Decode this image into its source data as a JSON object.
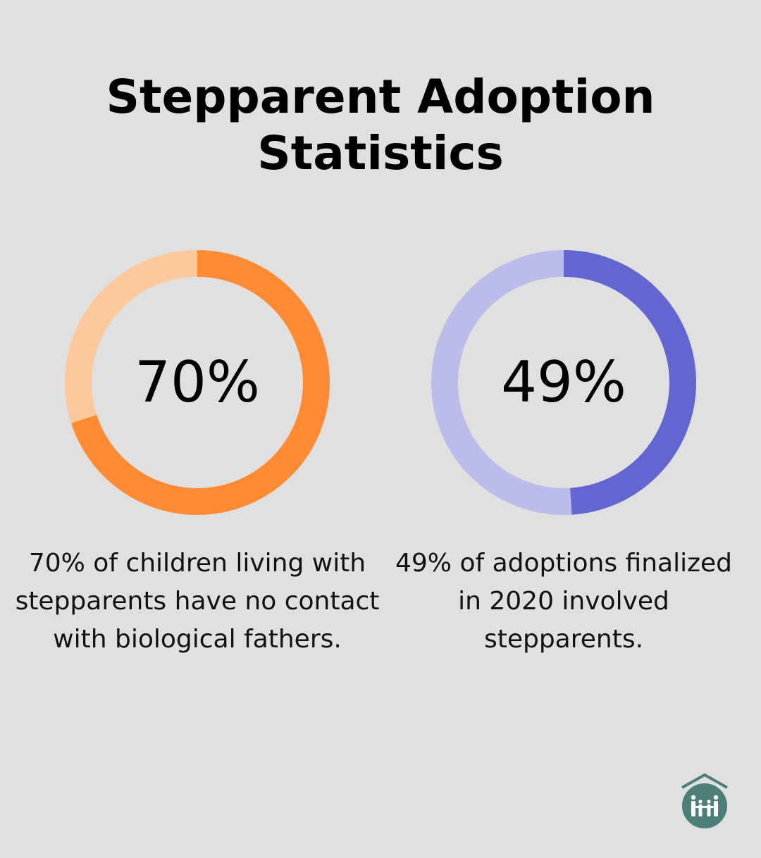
{
  "title": {
    "line1": "Stepparent Adoption",
    "line2": "Statistics"
  },
  "chart_data": [
    {
      "type": "pie",
      "value": 70,
      "label": "70%",
      "caption": "70% of children living with stepparents have no contact with biological fathers.",
      "colors": {
        "filled": "#fe8b34",
        "remainder": "#fec89d"
      }
    },
    {
      "type": "pie",
      "value": 49,
      "label": "49%",
      "caption": "49% of adoptions finalized in 2020 involved stepparents.",
      "colors": {
        "filled": "#6366d1",
        "remainder": "#bbbce9"
      }
    }
  ],
  "logo": {
    "icon": "family-house-icon",
    "color": "#4d7f78"
  }
}
